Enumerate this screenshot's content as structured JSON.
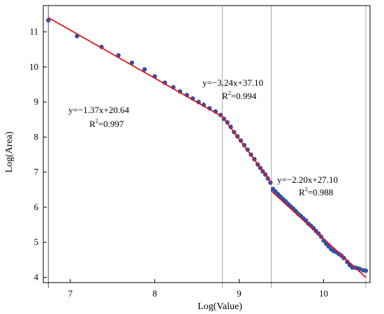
{
  "chart_data": {
    "type": "scatter",
    "xlabel": "Log(Value)",
    "ylabel": "Log(Area)",
    "xlim": [
      6.68,
      10.55
    ],
    "ylim": [
      3.85,
      11.75
    ],
    "xticks": [
      7,
      8,
      9,
      10
    ],
    "yticks": [
      4,
      5,
      6,
      7,
      8,
      9,
      10,
      11
    ],
    "grid": false,
    "vlines": [
      6.74,
      8.8,
      9.38,
      10.5
    ],
    "point_color": "#2f4fa6",
    "fit_color": "#e0141c",
    "fits": [
      {
        "slope": -1.37,
        "intercept": 20.64,
        "x_range": [
          6.74,
          8.8
        ],
        "equation": "y=−1.37x+20.64",
        "r2_prefix": "R",
        "r2_sup": "2",
        "r2_value": "=0.997"
      },
      {
        "slope": -3.24,
        "intercept": 37.1,
        "x_range": [
          8.8,
          9.38
        ],
        "equation": "y=−3.24x+37.10",
        "r2_prefix": "R",
        "r2_sup": "2",
        "r2_value": "=0.994"
      },
      {
        "slope": -2.2,
        "intercept": 27.1,
        "x_range": [
          9.38,
          10.5
        ],
        "equation": "y=−2.20x+27.10",
        "r2_prefix": "R",
        "r2_sup": "2",
        "r2_value": "=0.988"
      }
    ],
    "points": [
      [
        6.74,
        11.33
      ],
      [
        7.08,
        10.88
      ],
      [
        7.37,
        10.57
      ],
      [
        7.57,
        10.33
      ],
      [
        7.73,
        10.12
      ],
      [
        7.88,
        9.93
      ],
      [
        8.0,
        9.73
      ],
      [
        8.12,
        9.55
      ],
      [
        8.22,
        9.42
      ],
      [
        8.3,
        9.3
      ],
      [
        8.38,
        9.2
      ],
      [
        8.45,
        9.1
      ],
      [
        8.52,
        9.0
      ],
      [
        8.58,
        8.92
      ],
      [
        8.65,
        8.82
      ],
      [
        8.72,
        8.73
      ],
      [
        8.78,
        8.63
      ],
      [
        8.82,
        8.52
      ],
      [
        8.86,
        8.42
      ],
      [
        8.9,
        8.29
      ],
      [
        8.94,
        8.14
      ],
      [
        8.98,
        8.02
      ],
      [
        9.02,
        7.9
      ],
      [
        9.06,
        7.77
      ],
      [
        9.1,
        7.64
      ],
      [
        9.14,
        7.5
      ],
      [
        9.18,
        7.37
      ],
      [
        9.22,
        7.22
      ],
      [
        9.25,
        7.12
      ],
      [
        9.28,
        7.02
      ],
      [
        9.31,
        6.93
      ],
      [
        9.34,
        6.82
      ],
      [
        9.37,
        6.7
      ],
      [
        9.4,
        6.52
      ],
      [
        9.43,
        6.45
      ],
      [
        9.46,
        6.37
      ],
      [
        9.49,
        6.3
      ],
      [
        9.52,
        6.23
      ],
      [
        9.55,
        6.17
      ],
      [
        9.58,
        6.09
      ],
      [
        9.61,
        6.02
      ],
      [
        9.64,
        5.96
      ],
      [
        9.67,
        5.89
      ],
      [
        9.7,
        5.81
      ],
      [
        9.73,
        5.75
      ],
      [
        9.76,
        5.68
      ],
      [
        9.79,
        5.62
      ],
      [
        9.82,
        5.53
      ],
      [
        9.85,
        5.47
      ],
      [
        9.88,
        5.4
      ],
      [
        9.91,
        5.32
      ],
      [
        9.94,
        5.25
      ],
      [
        9.97,
        5.16
      ],
      [
        10.0,
        5.05
      ],
      [
        10.03,
        4.96
      ],
      [
        10.06,
        4.88
      ],
      [
        10.09,
        4.8
      ],
      [
        10.12,
        4.75
      ],
      [
        10.15,
        4.72
      ],
      [
        10.18,
        4.67
      ],
      [
        10.21,
        4.62
      ],
      [
        10.24,
        4.55
      ],
      [
        10.28,
        4.44
      ],
      [
        10.31,
        4.35
      ],
      [
        10.34,
        4.28
      ],
      [
        10.37,
        4.28
      ],
      [
        10.4,
        4.26
      ],
      [
        10.43,
        4.24
      ],
      [
        10.47,
        4.2
      ],
      [
        10.5,
        4.19
      ]
    ]
  }
}
